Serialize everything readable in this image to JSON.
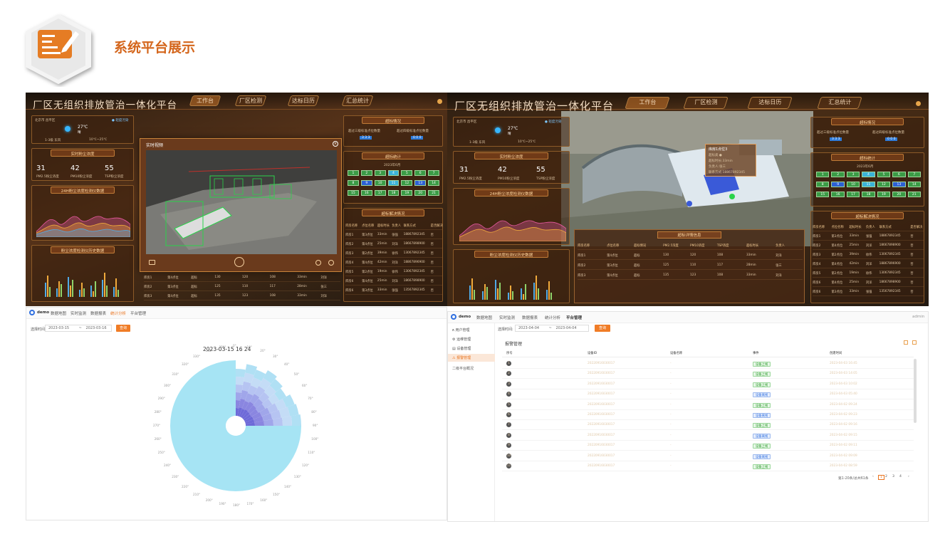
{
  "page": {
    "title": "系统平台展示",
    "icon": "edit-document-icon"
  },
  "dashboard": {
    "title": "厂区无组织排放管治一体化平台",
    "nav": [
      "工作台",
      "厂区检测",
      "达标日历",
      "汇总统计"
    ],
    "weather": {
      "location": "北京市 昌平区",
      "status": "● 轻度污染",
      "temp": "27℃",
      "desc": "晴",
      "wind": "1-3级 东风",
      "humidity": "10℃~25℃"
    },
    "realtime": {
      "title": "实时粉尘浓度",
      "values": [
        "31",
        "42",
        "55"
      ],
      "unit": "ug/m³",
      "labels": [
        "PM2.5粉尘浓度",
        "PM10粉尘浓度",
        "TSP粉尘浓度"
      ]
    },
    "trend24": {
      "title": "24H粉尘浓度检测仪数据",
      "legend": [
        "PM2.5",
        "PM10",
        "TSP"
      ]
    },
    "history": {
      "title": "粉尘浓度检测仪历史数据",
      "legend": [
        "PM2.5",
        "PM10",
        "TSP"
      ]
    },
    "exceed": {
      "title": "超标情况",
      "labels": [
        "超过三级标准点位数量",
        "超过四级标准点位数量"
      ],
      "left": "3 3 3",
      "right": "0 0 0"
    },
    "exceed_stats": {
      "title": "超标统计",
      "month": "2023年6月",
      "days": [
        "1",
        "2",
        "3",
        "4",
        "5",
        "6",
        "7",
        "8",
        "9",
        "10",
        "11",
        "12",
        "13",
        "14",
        "15",
        "16",
        "17",
        "18",
        "19",
        "20",
        "21"
      ]
    },
    "resolve": {
      "title": "超标解决情况",
      "headers": [
        "库房名称",
        "点位名称",
        "超标时长",
        "负责人",
        "联系方式",
        "是否解决"
      ],
      "rows": [
        [
          "库房1",
          "第3点位",
          "33min",
          "张强",
          "18867892345",
          "否"
        ],
        [
          "库房2",
          "第4点位",
          "25min",
          "刘洋",
          "18667898900",
          "否"
        ],
        [
          "库房3",
          "第2点位",
          "39min",
          "徐伟",
          "13067892345",
          "否"
        ],
        [
          "库房4",
          "第4点位",
          "42min",
          "刘洋",
          "18867896900",
          "否"
        ],
        [
          "库房5",
          "第2点位",
          "19min",
          "徐伟",
          "13067892345",
          "否"
        ],
        [
          "库房6",
          "第4点位",
          "25min",
          "刘洋",
          "18667898900",
          "否"
        ],
        [
          "库房6",
          "第3点位",
          "33min",
          "张强",
          "13567892345",
          "否"
        ]
      ]
    },
    "video": {
      "title": "实时视频",
      "timestamp": "2023年06月22日 星期四 11:01:55"
    },
    "detail": {
      "title": "超标详情信息",
      "headers": [
        "库房名称",
        "点位名称",
        "超标情况",
        "PM2.5浓度",
        "PM10浓度",
        "TSP浓度",
        "超标时长",
        "负责人"
      ],
      "rows": [
        [
          "库房1",
          "第4点位",
          "超标",
          "130",
          "120",
          "108",
          "33min",
          "刘洋"
        ],
        [
          "库房2",
          "第3点位",
          "超标",
          "125",
          "110",
          "117",
          "28min",
          "张三"
        ],
        [
          "库房3",
          "第4点位",
          "超标",
          "135",
          "123",
          "108",
          "33min",
          "刘洋"
        ]
      ]
    },
    "popup": {
      "title": "库房1点位3",
      "lines": [
        "超标类 ●",
        "超标时长:33min",
        "负责人:张三",
        "联系方式:18867892345"
      ]
    }
  },
  "stats_page": {
    "nav": [
      "demo",
      "数据地图",
      "实时监测",
      "数据报表",
      "统计分析",
      "平台管理"
    ],
    "active": "统计分析",
    "date_label": "选择时间:",
    "date_from": "2023-03-15",
    "date_sep": "~",
    "date_to": "2023-03-16",
    "query": "查询",
    "chart_title": "2023-03-15 16 24",
    "degrees": [
      "0°",
      "10°",
      "20°",
      "30°",
      "40°",
      "50°",
      "60°",
      "70°",
      "80°",
      "90°",
      "100°",
      "110°",
      "120°",
      "130°",
      "140°",
      "150°",
      "160°",
      "170°",
      "180°",
      "190°",
      "200°",
      "210°",
      "220°",
      "230°",
      "240°",
      "250°",
      "260°",
      "270°",
      "280°",
      "290°",
      "300°",
      "310°",
      "320°",
      "330°",
      "340°",
      "350°"
    ]
  },
  "alarm_page": {
    "nav": [
      "demo",
      "数据地图",
      "实时监测",
      "数据报表",
      "统计分析",
      "平台管理"
    ],
    "active": "平台管理",
    "user": "admin",
    "sidebar": [
      "用户管理",
      "运维管理",
      "设备管理",
      "报警管理",
      "二级平台概况"
    ],
    "sidebar_icons": [
      "user-icon",
      "wrench-icon",
      "device-icon",
      "alarm-icon",
      ""
    ],
    "sidebar_active": "报警管理",
    "date_label": "选择时间:",
    "date_from": "2023-04-04",
    "date_sep": "~",
    "date_to": "2023-04-04",
    "query": "查询",
    "section": "报警管理",
    "headers": [
      "序号",
      "设备ID",
      "设备名称",
      "事件",
      "创建时间"
    ],
    "rows": [
      [
        "1",
        "20220916030017",
        "-",
        "设备上线",
        "2023-04-03 16:45"
      ],
      [
        "2",
        "20220916030017",
        "-",
        "设备上线",
        "2023-04-03 14:05"
      ],
      [
        "3",
        "20220916030017",
        "-",
        "设备上线",
        "2023-04-03 10:02"
      ],
      [
        "4",
        "20220916030017",
        "-",
        "设备离线",
        "2023-04-03 05:40"
      ],
      [
        "5",
        "20220916030017",
        "-",
        "设备上线",
        "2023-04-02 09:24"
      ],
      [
        "6",
        "20220916030017",
        "-",
        "设备离线",
        "2023-04-02 09:23"
      ],
      [
        "7",
        "20220916030017",
        "-",
        "设备上线",
        "2023-04-02 09:16"
      ],
      [
        "8",
        "20220916030017",
        "-",
        "设备离线",
        "2023-04-02 09:15"
      ],
      [
        "9",
        "20220916030017",
        "-",
        "设备上线",
        "2023-04-02 09:11"
      ],
      [
        "10",
        "20220916030017",
        "-",
        "设备离线",
        "2023-04-02 09:09"
      ],
      [
        "11",
        "20220916030017",
        "-",
        "设备上线",
        "2023-04-02 08:59"
      ]
    ],
    "pagination": "第1-20条/总共61条",
    "pages": [
      "1",
      "2",
      "3",
      "4"
    ]
  }
}
